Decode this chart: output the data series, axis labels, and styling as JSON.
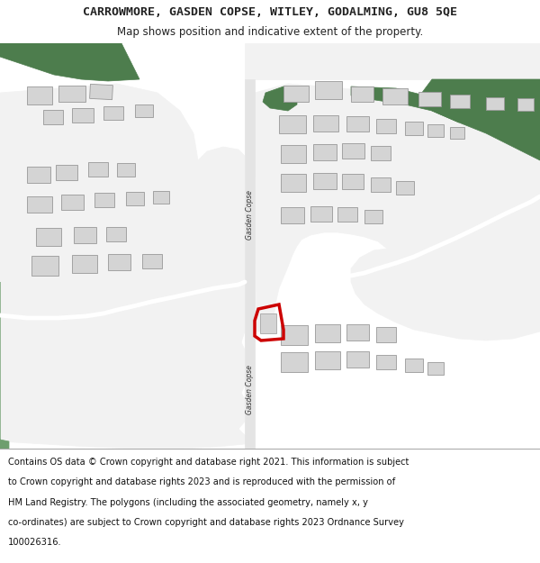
{
  "title_line1": "CARROWMORE, GASDEN COPSE, WITLEY, GODALMING, GU8 5QE",
  "title_line2": "Map shows position and indicative extent of the property.",
  "footer_lines": [
    "Contains OS data © Crown copyright and database right 2021. This information is subject",
    "to Crown copyright and database rights 2023 and is reproduced with the permission of",
    "HM Land Registry. The polygons (including the associated geometry, namely x, y",
    "co-ordinates) are subject to Crown copyright and database rights 2023 Ordnance Survey",
    "100026316."
  ],
  "green": "#6e9e6e",
  "dark_green": "#4d7d4d",
  "white_area": "#f2f2f2",
  "road_fill": "#e4e4e4",
  "building_fill": "#d4d4d4",
  "building_edge": "#999999",
  "red_outline": "#cc0000",
  "text_color": "#222222",
  "road_label": "Gasden Copse"
}
